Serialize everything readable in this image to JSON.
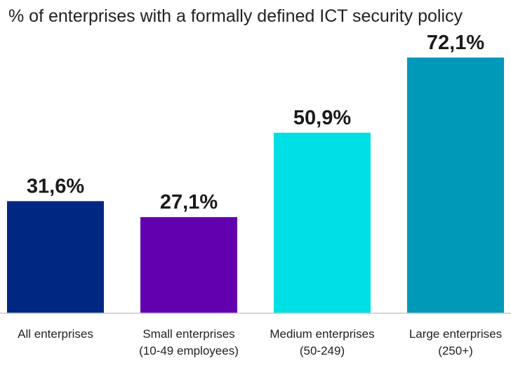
{
  "chart_data": {
    "type": "bar",
    "title": "% of enterprises with a formally defined ICT security policy",
    "categories": [
      [
        "All enterprises"
      ],
      [
        "Small enterprises",
        "(10-49 employees)"
      ],
      [
        "Medium enterprises",
        "(50-249)"
      ],
      [
        "Large enterprises",
        "(250+)"
      ]
    ],
    "values": [
      31.6,
      27.1,
      50.9,
      72.1
    ],
    "value_labels": [
      "31,6%",
      "27,1%",
      "50,9%",
      "72,1%"
    ],
    "colors": [
      "#002882",
      "#6200b0",
      "#00e0e4",
      "#0099b8"
    ],
    "ylim": [
      0,
      80
    ],
    "grid": false,
    "legend": "none"
  }
}
